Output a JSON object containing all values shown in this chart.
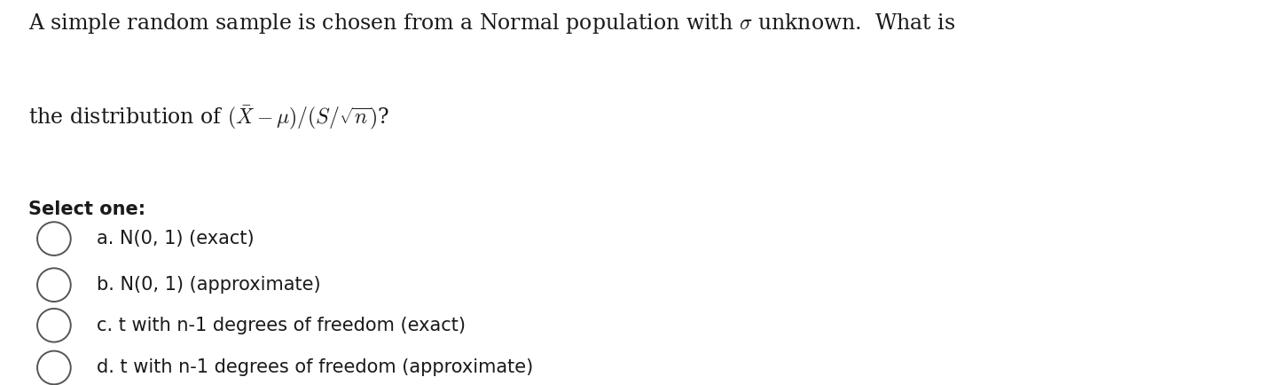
{
  "background_color": "#ffffff",
  "question_line1": "A simple random sample is chosen from a Normal population with $\\sigma$ unknown.  What is",
  "question_line2": "the distribution of $(\\bar{X} - \\mu)/(S/\\sqrt{n})$?",
  "select_one_label": "Select one:",
  "options": [
    "a. N(0, 1) (exact)",
    "b. N(0, 1) (approximate)",
    "c. t with n-1 degrees of freedom (exact)",
    "d. t with n-1 degrees of freedom (approximate)"
  ],
  "text_color": "#1a1a1a",
  "circle_color": "#555555",
  "question_fontsize": 17,
  "select_fontsize": 15,
  "option_fontsize": 15
}
